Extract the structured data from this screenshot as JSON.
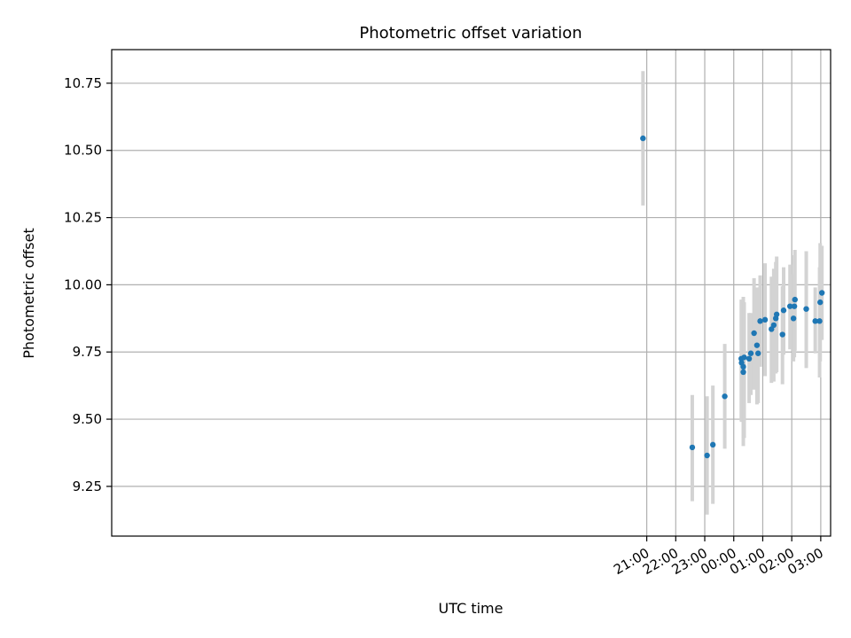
{
  "chart_data": {
    "type": "scatter",
    "title": "Photometric offset variation",
    "xlabel": "UTC time",
    "ylabel": "Photometric offset",
    "grid": true,
    "x_unit": "hours relative to 00:00 UTC",
    "xlim": [
      -21.45,
      3.34
    ],
    "ylim": [
      9.065,
      10.875
    ],
    "xticks": [
      {
        "value": -3,
        "label": "21:00"
      },
      {
        "value": -2,
        "label": "22:00"
      },
      {
        "value": -1,
        "label": "23:00"
      },
      {
        "value": 0,
        "label": "00:00"
      },
      {
        "value": 1,
        "label": "01:00"
      },
      {
        "value": 2,
        "label": "02:00"
      },
      {
        "value": 3,
        "label": "03:00"
      }
    ],
    "yticks": [
      {
        "value": 9.25,
        "label": "9.25"
      },
      {
        "value": 9.5,
        "label": "9.50"
      },
      {
        "value": 9.75,
        "label": "9.75"
      },
      {
        "value": 10.0,
        "label": "10.00"
      },
      {
        "value": 10.25,
        "label": "10.25"
      },
      {
        "value": 10.5,
        "label": "10.50"
      },
      {
        "value": 10.75,
        "label": "10.75"
      }
    ],
    "marker_color": "#1f77b4",
    "errorbar_color": "#d3d3d3",
    "series": [
      {
        "name": "offset",
        "points": [
          {
            "x": -3.13,
            "y": 10.545,
            "lo": 10.295,
            "hi": 10.795
          },
          {
            "x": -1.43,
            "y": 9.395,
            "lo": 9.195,
            "hi": 9.59
          },
          {
            "x": -0.92,
            "y": 9.365,
            "lo": 9.145,
            "hi": 9.585
          },
          {
            "x": -0.72,
            "y": 9.405,
            "lo": 9.185,
            "hi": 9.625
          },
          {
            "x": -0.31,
            "y": 9.585,
            "lo": 9.39,
            "hi": 9.78
          },
          {
            "x": 0.26,
            "y": 9.725,
            "lo": 9.495,
            "hi": 9.945
          },
          {
            "x": 0.27,
            "y": 9.71,
            "lo": 9.49,
            "hi": 9.94
          },
          {
            "x": 0.33,
            "y": 9.695,
            "lo": 9.465,
            "hi": 9.935
          },
          {
            "x": 0.33,
            "y": 9.675,
            "lo": 9.4,
            "hi": 9.955
          },
          {
            "x": 0.36,
            "y": 9.73,
            "lo": 9.43,
            "hi": 9.935
          },
          {
            "x": 0.53,
            "y": 9.725,
            "lo": 9.56,
            "hi": 9.895
          },
          {
            "x": 0.59,
            "y": 9.745,
            "lo": 9.59,
            "hi": 9.895
          },
          {
            "x": 0.7,
            "y": 9.82,
            "lo": 9.61,
            "hi": 10.025
          },
          {
            "x": 0.8,
            "y": 9.775,
            "lo": 9.555,
            "hi": 9.99
          },
          {
            "x": 0.84,
            "y": 9.745,
            "lo": 9.56,
            "hi": 9.925
          },
          {
            "x": 0.91,
            "y": 9.865,
            "lo": 9.695,
            "hi": 10.035
          },
          {
            "x": 1.08,
            "y": 9.87,
            "lo": 9.66,
            "hi": 10.08
          },
          {
            "x": 1.3,
            "y": 9.835,
            "lo": 9.635,
            "hi": 10.03
          },
          {
            "x": 1.38,
            "y": 9.85,
            "lo": 9.64,
            "hi": 10.06
          },
          {
            "x": 1.45,
            "y": 9.875,
            "lo": 9.67,
            "hi": 10.085
          },
          {
            "x": 1.48,
            "y": 9.89,
            "lo": 9.675,
            "hi": 10.105
          },
          {
            "x": 1.68,
            "y": 9.815,
            "lo": 9.63,
            "hi": 9.995
          },
          {
            "x": 1.72,
            "y": 9.905,
            "lo": 9.74,
            "hi": 10.065
          },
          {
            "x": 1.94,
            "y": 9.92,
            "lo": 9.76,
            "hi": 10.075
          },
          {
            "x": 2.06,
            "y": 9.875,
            "lo": 9.715,
            "hi": 10.04
          },
          {
            "x": 2.09,
            "y": 9.92,
            "lo": 9.73,
            "hi": 10.11
          },
          {
            "x": 2.11,
            "y": 9.945,
            "lo": 9.755,
            "hi": 10.13
          },
          {
            "x": 2.5,
            "y": 9.91,
            "lo": 9.69,
            "hi": 10.125
          },
          {
            "x": 2.81,
            "y": 9.865,
            "lo": 9.745,
            "hi": 9.99
          },
          {
            "x": 2.96,
            "y": 9.865,
            "lo": 9.655,
            "hi": 10.065
          },
          {
            "x": 2.98,
            "y": 9.935,
            "lo": 9.715,
            "hi": 10.155
          },
          {
            "x": 3.04,
            "y": 9.97,
            "lo": 9.795,
            "hi": 10.145
          }
        ]
      }
    ]
  }
}
